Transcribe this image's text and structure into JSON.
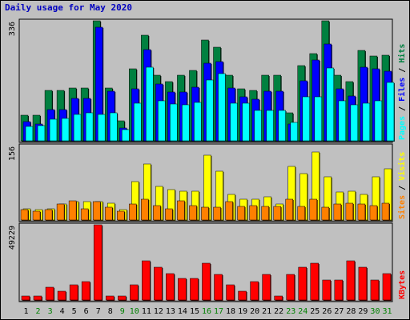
{
  "title": "Daily usage for May 2020",
  "chart_data": [
    {
      "type": "bar",
      "panel": "top",
      "categories": [
        "1",
        "2",
        "3",
        "4",
        "5",
        "6",
        "7",
        "8",
        "9",
        "10",
        "11",
        "12",
        "13",
        "14",
        "15",
        "16",
        "17",
        "18",
        "19",
        "20",
        "21",
        "22",
        "23",
        "24",
        "25",
        "26",
        "27",
        "28",
        "29",
        "30",
        "31"
      ],
      "ymax_label": "336",
      "ylim": [
        0,
        336
      ],
      "series": [
        {
          "name": "Hits",
          "color": "#008040",
          "values": [
            71,
            71,
            141,
            141,
            148,
            148,
            336,
            148,
            56,
            201,
            296,
            183,
            166,
            183,
            198,
            283,
            263,
            183,
            146,
            141,
            183,
            183,
            78,
            211,
            244,
            336,
            183,
            166,
            254,
            238,
            240
          ]
        },
        {
          "name": "Files",
          "color": "#0000ff",
          "values": [
            53,
            48,
            88,
            88,
            118,
            118,
            319,
            138,
            36,
            146,
            256,
            158,
            136,
            136,
            151,
            218,
            221,
            148,
            124,
            116,
            138,
            138,
            46,
            168,
            226,
            270,
            146,
            126,
            207,
            201,
            194
          ]
        },
        {
          "name": "Pages",
          "color": "#00ffff",
          "values": [
            41,
            43,
            61,
            63,
            73,
            78,
            73,
            78,
            31,
            106,
            206,
            113,
            103,
            101,
            108,
            171,
            188,
            106,
            106,
            86,
            86,
            86,
            51,
            123,
            123,
            204,
            111,
            101,
            106,
            113,
            163
          ]
        }
      ],
      "labels_right": [
        {
          "text": "Pages",
          "color": "#00ffff"
        },
        {
          "text": " / ",
          "color": "#000000"
        },
        {
          "text": "Files",
          "color": "#0000ff"
        },
        {
          "text": " / ",
          "color": "#000000"
        },
        {
          "text": "Hits",
          "color": "#008040"
        }
      ]
    },
    {
      "type": "bar",
      "panel": "middle",
      "categories": [
        "1",
        "2",
        "3",
        "4",
        "5",
        "6",
        "7",
        "8",
        "9",
        "10",
        "11",
        "12",
        "13",
        "14",
        "15",
        "16",
        "17",
        "18",
        "19",
        "20",
        "21",
        "22",
        "23",
        "24",
        "25",
        "26",
        "27",
        "28",
        "29",
        "30",
        "31"
      ],
      "ymax_label": "156",
      "ylim": [
        0,
        156
      ],
      "series": [
        {
          "name": "Visits",
          "color": "#ffff00",
          "values": [
            24,
            22,
            24,
            33,
            38,
            38,
            38,
            36,
            21,
            81,
            118,
            71,
            63,
            61,
            61,
            136,
            103,
            53,
            43,
            43,
            48,
            33,
            113,
            98,
            143,
            91,
            59,
            61,
            53,
            91,
            108
          ]
        },
        {
          "name": "Sites",
          "color": "#ff8000",
          "values": [
            21,
            19,
            21,
            33,
            41,
            23,
            38,
            26,
            18,
            33,
            43,
            31,
            23,
            41,
            31,
            26,
            26,
            38,
            28,
            31,
            28,
            28,
            43,
            28,
            43,
            26,
            33,
            36,
            33,
            31,
            36
          ]
        }
      ],
      "labels_right": [
        {
          "text": "Sites",
          "color": "#ff8000"
        },
        {
          "text": " / ",
          "color": "#000000"
        },
        {
          "text": "Visits",
          "color": "#ffff00"
        }
      ]
    },
    {
      "type": "bar",
      "panel": "bottom",
      "categories": [
        "1",
        "2",
        "3",
        "4",
        "5",
        "6",
        "7",
        "8",
        "9",
        "10",
        "11",
        "12",
        "13",
        "14",
        "15",
        "16",
        "17",
        "18",
        "19",
        "20",
        "21",
        "22",
        "23",
        "24",
        "25",
        "26",
        "27",
        "28",
        "29",
        "30",
        "31"
      ],
      "ymax_label": "49229",
      "ylim": [
        0,
        49229
      ],
      "series": [
        {
          "name": "KBytes",
          "color": "#ff0000",
          "values": [
            2500,
            2500,
            8400,
            5800,
            10100,
            11800,
            49229,
            2500,
            2500,
            9700,
            25600,
            21400,
            17200,
            13900,
            13900,
            23900,
            16800,
            9700,
            5800,
            11800,
            16800,
            2500,
            16800,
            21400,
            23900,
            13000,
            13000,
            25600,
            21400,
            13000,
            17200
          ]
        }
      ],
      "labels_right": [
        {
          "text": "KBytes",
          "color": "#ff0000"
        }
      ]
    }
  ],
  "x_axis": {
    "labels": [
      "1",
      "2",
      "3",
      "4",
      "5",
      "6",
      "7",
      "8",
      "9",
      "10",
      "11",
      "12",
      "13",
      "14",
      "15",
      "16",
      "17",
      "18",
      "19",
      "20",
      "21",
      "22",
      "23",
      "24",
      "25",
      "26",
      "27",
      "28",
      "29",
      "30",
      "31"
    ],
    "weekend": [
      2,
      3,
      9,
      10,
      16,
      17,
      23,
      24,
      30,
      31
    ],
    "weekday_color": "#000000",
    "weekend_color": "#008000"
  }
}
